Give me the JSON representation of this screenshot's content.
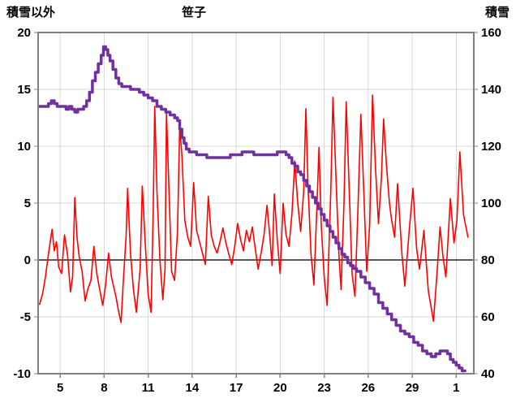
{
  "header": {
    "left_axis_title": "積雪以外",
    "title": "笹子",
    "right_axis_title": "積雪"
  },
  "chart_data": {
    "type": "line",
    "title": "笹子",
    "legend": "none",
    "grid": {
      "color": "#d9d9d9",
      "zero_line_color": "#595959",
      "border_color": "#808080",
      "tick_color": "#808080"
    },
    "x_axis": {
      "min": 3.5,
      "max": 33.2,
      "tick_values": [
        5,
        8,
        11,
        14,
        17,
        20,
        23,
        26,
        29,
        32
      ],
      "tick_labels": [
        "5",
        "8",
        "11",
        "14",
        "17",
        "20",
        "23",
        "26",
        "29",
        "1"
      ]
    },
    "left_axis": {
      "title": "積雪以外",
      "min": -10,
      "max": 20,
      "tick_values": [
        20,
        15,
        10,
        5,
        0,
        -5,
        -10
      ],
      "tick_labels": [
        "20",
        "15",
        "10",
        "5",
        "0",
        "-5",
        "-10"
      ]
    },
    "right_axis": {
      "title": "積雪",
      "min": 40,
      "max": 160,
      "tick_values": [
        160,
        140,
        120,
        100,
        80,
        60,
        40
      ],
      "tick_labels": [
        "160",
        "140",
        "120",
        "100",
        "80",
        "60",
        "40"
      ]
    },
    "series": [
      {
        "name": "積雪以外",
        "axis": "left",
        "color": "#FF0000",
        "width": 1.6,
        "interpolation": "linear",
        "points": [
          [
            3.6,
            -3.9
          ],
          [
            3.8,
            -3.0
          ],
          [
            4.0,
            -1.5
          ],
          [
            4.2,
            0.5
          ],
          [
            4.45,
            2.7
          ],
          [
            4.6,
            0.8
          ],
          [
            4.75,
            1.6
          ],
          [
            4.9,
            -0.6
          ],
          [
            5.1,
            -1.2
          ],
          [
            5.3,
            2.2
          ],
          [
            5.5,
            0.5
          ],
          [
            5.7,
            -2.8
          ],
          [
            5.85,
            -1.5
          ],
          [
            6.0,
            5.5
          ],
          [
            6.15,
            2.0
          ],
          [
            6.3,
            0.3
          ],
          [
            6.5,
            -1.0
          ],
          [
            6.7,
            -3.6
          ],
          [
            6.9,
            -2.5
          ],
          [
            7.1,
            -1.8
          ],
          [
            7.3,
            1.2
          ],
          [
            7.5,
            -1.2
          ],
          [
            7.7,
            -2.6
          ],
          [
            7.9,
            -4.0
          ],
          [
            8.1,
            -2.2
          ],
          [
            8.3,
            0.6
          ],
          [
            8.5,
            -1.5
          ],
          [
            8.8,
            -3.2
          ],
          [
            9.0,
            -4.6
          ],
          [
            9.15,
            -5.5
          ],
          [
            9.3,
            -2.0
          ],
          [
            9.5,
            2.2
          ],
          [
            9.6,
            6.3
          ],
          [
            9.8,
            0.5
          ],
          [
            10.0,
            -2.6
          ],
          [
            10.2,
            -4.6
          ],
          [
            10.45,
            -0.8
          ],
          [
            10.6,
            6.5
          ],
          [
            10.8,
            1.5
          ],
          [
            11.0,
            -3.0
          ],
          [
            11.2,
            -4.6
          ],
          [
            11.35,
            4.5
          ],
          [
            11.45,
            13.5
          ],
          [
            11.6,
            6.0
          ],
          [
            11.8,
            0.0
          ],
          [
            12.0,
            -3.5
          ],
          [
            12.15,
            -0.8
          ],
          [
            12.25,
            12.9
          ],
          [
            12.45,
            5.0
          ],
          [
            12.6,
            -1.0
          ],
          [
            12.8,
            -1.8
          ],
          [
            13.0,
            2.5
          ],
          [
            13.15,
            11.8
          ],
          [
            13.3,
            9.2
          ],
          [
            13.5,
            3.5
          ],
          [
            13.7,
            2.0
          ],
          [
            13.9,
            1.2
          ],
          [
            14.1,
            6.8
          ],
          [
            14.3,
            2.6
          ],
          [
            14.5,
            1.6
          ],
          [
            14.7,
            0.6
          ],
          [
            14.9,
            -0.4
          ],
          [
            15.1,
            5.6
          ],
          [
            15.3,
            2.2
          ],
          [
            15.5,
            1.2
          ],
          [
            15.7,
            0.6
          ],
          [
            15.9,
            1.6
          ],
          [
            16.1,
            2.8
          ],
          [
            16.3,
            1.5
          ],
          [
            16.5,
            0.5
          ],
          [
            16.7,
            -0.4
          ],
          [
            16.9,
            1.2
          ],
          [
            17.1,
            3.2
          ],
          [
            17.3,
            1.8
          ],
          [
            17.5,
            0.8
          ],
          [
            17.7,
            2.6
          ],
          [
            17.9,
            1.6
          ],
          [
            18.1,
            2.9
          ],
          [
            18.3,
            1.0
          ],
          [
            18.5,
            -0.8
          ],
          [
            18.7,
            0.6
          ],
          [
            18.9,
            2.2
          ],
          [
            19.1,
            4.8
          ],
          [
            19.3,
            2.0
          ],
          [
            19.45,
            -0.5
          ],
          [
            19.6,
            5.8
          ],
          [
            19.8,
            1.8
          ],
          [
            20.0,
            -1.2
          ],
          [
            20.2,
            5.0
          ],
          [
            20.4,
            2.2
          ],
          [
            20.6,
            1.2
          ],
          [
            20.8,
            4.0
          ],
          [
            21.0,
            8.7
          ],
          [
            21.2,
            5.0
          ],
          [
            21.4,
            2.5
          ],
          [
            21.6,
            6.0
          ],
          [
            21.75,
            13.3
          ],
          [
            21.9,
            6.5
          ],
          [
            22.1,
            0.5
          ],
          [
            22.3,
            -2.2
          ],
          [
            22.5,
            4.5
          ],
          [
            22.65,
            9.9
          ],
          [
            22.8,
            3.0
          ],
          [
            23.0,
            -1.5
          ],
          [
            23.2,
            -4.0
          ],
          [
            23.45,
            6.0
          ],
          [
            23.6,
            14.3
          ],
          [
            23.8,
            7.5
          ],
          [
            24.0,
            0.5
          ],
          [
            24.15,
            -2.6
          ],
          [
            24.35,
            5.0
          ],
          [
            24.5,
            13.9
          ],
          [
            24.7,
            6.5
          ],
          [
            24.9,
            -1.2
          ],
          [
            25.1,
            -3.2
          ],
          [
            25.3,
            4.5
          ],
          [
            25.5,
            12.8
          ],
          [
            25.7,
            6.0
          ],
          [
            25.9,
            -1.0
          ],
          [
            26.1,
            3.0
          ],
          [
            26.3,
            14.5
          ],
          [
            26.5,
            8.0
          ],
          [
            26.7,
            3.2
          ],
          [
            26.9,
            7.2
          ],
          [
            27.05,
            12.4
          ],
          [
            27.25,
            8.3
          ],
          [
            27.45,
            5.0
          ],
          [
            27.6,
            3.5
          ],
          [
            27.8,
            2.0
          ],
          [
            28.0,
            6.7
          ],
          [
            28.3,
            0.5
          ],
          [
            28.5,
            -2.3
          ],
          [
            28.8,
            2.6
          ],
          [
            29.05,
            6.3
          ],
          [
            29.3,
            1.0
          ],
          [
            29.5,
            -0.8
          ],
          [
            29.8,
            2.6
          ],
          [
            30.1,
            -2.7
          ],
          [
            30.45,
            -5.4
          ],
          [
            30.7,
            -1.0
          ],
          [
            30.9,
            2.9
          ],
          [
            31.1,
            0.3
          ],
          [
            31.3,
            -1.5
          ],
          [
            31.6,
            5.4
          ],
          [
            31.85,
            1.5
          ],
          [
            32.05,
            3.5
          ],
          [
            32.25,
            9.5
          ],
          [
            32.5,
            4.0
          ],
          [
            32.8,
            2.0
          ]
        ]
      },
      {
        "name": "積雪",
        "axis": "right",
        "color": "#7030A0",
        "width": 3.5,
        "interpolation": "step",
        "points": [
          [
            3.6,
            134
          ],
          [
            4.0,
            134
          ],
          [
            4.2,
            135
          ],
          [
            4.4,
            136
          ],
          [
            4.6,
            135
          ],
          [
            4.8,
            134
          ],
          [
            5.0,
            134
          ],
          [
            5.2,
            134
          ],
          [
            5.4,
            133
          ],
          [
            5.6,
            134
          ],
          [
            5.8,
            133
          ],
          [
            6.0,
            132
          ],
          [
            6.2,
            133
          ],
          [
            6.4,
            133
          ],
          [
            6.6,
            134
          ],
          [
            6.8,
            136
          ],
          [
            7.0,
            139
          ],
          [
            7.2,
            143
          ],
          [
            7.4,
            146
          ],
          [
            7.6,
            149
          ],
          [
            7.8,
            152
          ],
          [
            7.95,
            155
          ],
          [
            8.1,
            154
          ],
          [
            8.25,
            152
          ],
          [
            8.4,
            150
          ],
          [
            8.6,
            147
          ],
          [
            8.8,
            144
          ],
          [
            9.0,
            142
          ],
          [
            9.2,
            141
          ],
          [
            9.5,
            141
          ],
          [
            9.8,
            140
          ],
          [
            10.1,
            140
          ],
          [
            10.4,
            139
          ],
          [
            10.7,
            138
          ],
          [
            11.0,
            137
          ],
          [
            11.3,
            136
          ],
          [
            11.6,
            134
          ],
          [
            11.9,
            133
          ],
          [
            12.2,
            132
          ],
          [
            12.5,
            131
          ],
          [
            12.8,
            130
          ],
          [
            13.0,
            129
          ],
          [
            13.15,
            126
          ],
          [
            13.3,
            123
          ],
          [
            13.45,
            121
          ],
          [
            13.6,
            119
          ],
          [
            13.8,
            118
          ],
          [
            14.0,
            118
          ],
          [
            14.3,
            117
          ],
          [
            14.6,
            117
          ],
          [
            15.0,
            116
          ],
          [
            15.4,
            116
          ],
          [
            15.8,
            116
          ],
          [
            16.2,
            116
          ],
          [
            16.6,
            117
          ],
          [
            17.0,
            117
          ],
          [
            17.4,
            118
          ],
          [
            17.8,
            118
          ],
          [
            18.2,
            117
          ],
          [
            18.6,
            117
          ],
          [
            19.0,
            117
          ],
          [
            19.4,
            117
          ],
          [
            19.8,
            118
          ],
          [
            20.1,
            118
          ],
          [
            20.4,
            117
          ],
          [
            20.6,
            116
          ],
          [
            20.8,
            114
          ],
          [
            21.0,
            113
          ],
          [
            21.2,
            111
          ],
          [
            21.4,
            110
          ],
          [
            21.6,
            108
          ],
          [
            21.8,
            106
          ],
          [
            22.0,
            104
          ],
          [
            22.2,
            102
          ],
          [
            22.4,
            100
          ],
          [
            22.6,
            98
          ],
          [
            22.8,
            96
          ],
          [
            23.0,
            94
          ],
          [
            23.2,
            92
          ],
          [
            23.4,
            90
          ],
          [
            23.6,
            88
          ],
          [
            23.8,
            86
          ],
          [
            24.0,
            84
          ],
          [
            24.2,
            82
          ],
          [
            24.4,
            81
          ],
          [
            24.6,
            79
          ],
          [
            24.8,
            78
          ],
          [
            25.0,
            77
          ],
          [
            25.2,
            76
          ],
          [
            25.5,
            74
          ],
          [
            25.8,
            72
          ],
          [
            26.1,
            70
          ],
          [
            26.4,
            68
          ],
          [
            26.7,
            65
          ],
          [
            27.0,
            63
          ],
          [
            27.3,
            61
          ],
          [
            27.6,
            59
          ],
          [
            27.9,
            57
          ],
          [
            28.2,
            55
          ],
          [
            28.5,
            54
          ],
          [
            28.8,
            53
          ],
          [
            29.1,
            51
          ],
          [
            29.4,
            50
          ],
          [
            29.7,
            48
          ],
          [
            30.0,
            47
          ],
          [
            30.3,
            46
          ],
          [
            30.6,
            47
          ],
          [
            30.9,
            48
          ],
          [
            31.2,
            48
          ],
          [
            31.4,
            47
          ],
          [
            31.6,
            45
          ],
          [
            31.8,
            44
          ],
          [
            32.0,
            43
          ],
          [
            32.2,
            42
          ],
          [
            32.4,
            41
          ],
          [
            32.6,
            41
          ]
        ]
      }
    ]
  }
}
